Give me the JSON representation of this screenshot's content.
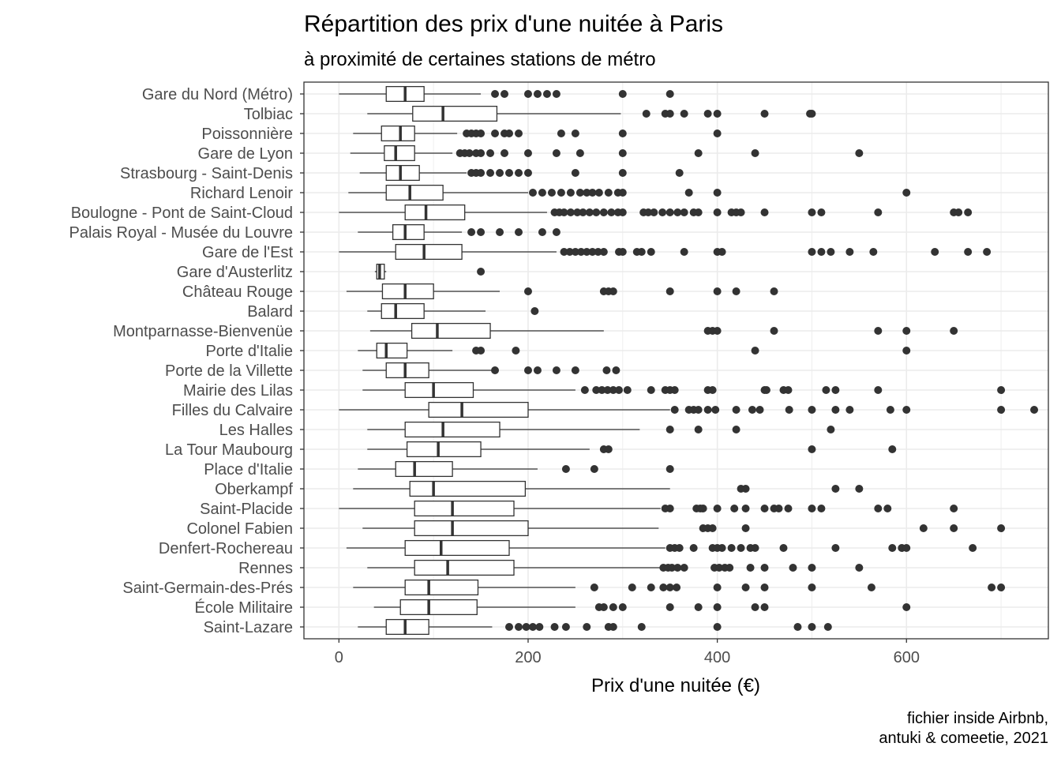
{
  "chart_data": {
    "type": "boxplot",
    "title": "Répartition des prix d'une nuitée à Paris",
    "subtitle": "à proximité de certaines stations de métro",
    "xlabel": "Prix d'une nuitée (€)",
    "ylabel": "",
    "caption_lines": [
      "fichier inside Airbnb,",
      "antuki & comeetie, 2021"
    ],
    "xlim": [
      -37,
      750
    ],
    "xticks": [
      0,
      200,
      400,
      600
    ],
    "xtick_labels": [
      "0",
      "200",
      "400",
      "600"
    ],
    "grid": true,
    "colors": {
      "box_fill": "#ffffff",
      "box_stroke": "#333333",
      "outlier": "#333333",
      "grid": "#ebebeb",
      "panel_border": "#333333"
    },
    "categories": [
      "Gare du Nord (Métro)",
      "Tolbiac",
      "Poissonnière",
      "Gare de Lyon",
      "Strasbourg - Saint-Denis",
      "Richard Lenoir",
      "Boulogne - Pont de Saint-Cloud",
      "Palais Royal - Musée du Louvre",
      "Gare de l'Est",
      "Gare d'Austerlitz",
      "Château Rouge",
      "Balard",
      "Montparnasse-Bienvenüe",
      "Porte d'Italie",
      "Porte de la Villette",
      "Mairie des Lilas",
      "Filles du Calvaire",
      "Les Halles",
      "La Tour Maubourg",
      "Place d'Italie",
      "Oberkampf",
      "Saint-Placide",
      "Colonel Fabien",
      "Denfert-Rochereau",
      "Rennes",
      "Saint-Germain-des-Prés",
      "École Militaire",
      "Saint-Lazare"
    ],
    "boxes": [
      {
        "min": 0,
        "q1": 50,
        "median": 70,
        "q3": 90,
        "max": 150,
        "outliers": [
          165,
          175,
          200,
          210,
          220,
          230,
          300,
          350
        ]
      },
      {
        "min": 30,
        "q1": 78,
        "median": 110,
        "q3": 167,
        "max": 298,
        "outliers": [
          325,
          345,
          350,
          365,
          390,
          400,
          450,
          498,
          500
        ]
      },
      {
        "min": 15,
        "q1": 45,
        "median": 65,
        "q3": 80,
        "max": 125,
        "outliers": [
          135,
          140,
          145,
          150,
          165,
          175,
          180,
          190,
          235,
          250,
          300,
          400
        ]
      },
      {
        "min": 12,
        "q1": 48,
        "median": 60,
        "q3": 80,
        "max": 120,
        "outliers": [
          128,
          133,
          138,
          145,
          150,
          160,
          175,
          200,
          230,
          255,
          300,
          380,
          440,
          550
        ]
      },
      {
        "min": 22,
        "q1": 50,
        "median": 65,
        "q3": 85,
        "max": 135,
        "outliers": [
          140,
          145,
          150,
          160,
          170,
          180,
          190,
          200,
          250,
          300,
          360
        ]
      },
      {
        "min": 10,
        "q1": 50,
        "median": 75,
        "q3": 110,
        "max": 200,
        "outliers": [
          205,
          215,
          225,
          235,
          245,
          255,
          262,
          268,
          275,
          285,
          295,
          300,
          370,
          400,
          600
        ]
      },
      {
        "min": 0,
        "q1": 70,
        "median": 92,
        "q3": 133,
        "max": 220,
        "outliers": [
          228,
          233,
          238,
          245,
          252,
          258,
          265,
          272,
          280,
          288,
          295,
          300,
          322,
          327,
          333,
          342,
          350,
          358,
          365,
          375,
          380,
          400,
          415,
          420,
          425,
          450,
          500,
          510,
          570,
          650,
          655,
          665
        ]
      },
      {
        "min": 20,
        "q1": 57,
        "median": 70,
        "q3": 90,
        "max": 130,
        "outliers": [
          140,
          150,
          170,
          190,
          215,
          230
        ]
      },
      {
        "min": 0,
        "q1": 60,
        "median": 90,
        "q3": 130,
        "max": 230,
        "outliers": [
          238,
          244,
          250,
          256,
          262,
          268,
          274,
          280,
          296,
          300,
          315,
          320,
          330,
          365,
          400,
          405,
          500,
          510,
          520,
          540,
          565,
          630,
          665,
          685
        ]
      },
      {
        "min": 38,
        "q1": 40,
        "median": 43,
        "q3": 48,
        "max": 50,
        "outliers": [
          150
        ]
      },
      {
        "min": 8,
        "q1": 46,
        "median": 70,
        "q3": 100,
        "max": 170,
        "outliers": [
          200,
          280,
          285,
          290,
          350,
          400,
          420,
          460
        ]
      },
      {
        "min": 30,
        "q1": 45,
        "median": 60,
        "q3": 90,
        "max": 155,
        "outliers": [
          207
        ]
      },
      {
        "min": 33,
        "q1": 77,
        "median": 104,
        "q3": 160,
        "max": 280,
        "outliers": [
          390,
          395,
          400,
          460,
          570,
          600,
          650
        ]
      },
      {
        "min": 20,
        "q1": 40,
        "median": 50,
        "q3": 72,
        "max": 120,
        "outliers": [
          145,
          150,
          187,
          440,
          600
        ]
      },
      {
        "min": 25,
        "q1": 50,
        "median": 70,
        "q3": 95,
        "max": 162,
        "outliers": [
          165,
          200,
          210,
          230,
          250,
          283,
          293
        ]
      },
      {
        "min": 25,
        "q1": 70,
        "median": 100,
        "q3": 142,
        "max": 250,
        "outliers": [
          260,
          272,
          278,
          284,
          290,
          296,
          305,
          330,
          345,
          350,
          355,
          390,
          395,
          450,
          452,
          470,
          475,
          515,
          525,
          570,
          700
        ]
      },
      {
        "min": 0,
        "q1": 95,
        "median": 130,
        "q3": 200,
        "max": 350,
        "outliers": [
          355,
          370,
          375,
          380,
          390,
          398,
          420,
          437,
          445,
          476,
          500,
          525,
          540,
          583,
          600,
          700,
          735
        ]
      },
      {
        "min": 30,
        "q1": 70,
        "median": 110,
        "q3": 170,
        "max": 318,
        "outliers": [
          350,
          380,
          420,
          520
        ]
      },
      {
        "min": 30,
        "q1": 72,
        "median": 105,
        "q3": 150,
        "max": 265,
        "outliers": [
          280,
          285,
          500,
          585
        ]
      },
      {
        "min": 20,
        "q1": 60,
        "median": 80,
        "q3": 120,
        "max": 210,
        "outliers": [
          240,
          270,
          350
        ]
      },
      {
        "min": 15,
        "q1": 75,
        "median": 100,
        "q3": 197,
        "max": 350,
        "outliers": [
          425,
          430,
          525,
          550
        ]
      },
      {
        "min": 0,
        "q1": 80,
        "median": 120,
        "q3": 185,
        "max": 340,
        "outliers": [
          345,
          350,
          378,
          382,
          385,
          400,
          418,
          430,
          450,
          460,
          465,
          475,
          500,
          510,
          570,
          580,
          650
        ]
      },
      {
        "min": 25,
        "q1": 80,
        "median": 120,
        "q3": 200,
        "max": 338,
        "outliers": [
          385,
          390,
          395,
          430,
          618,
          650,
          700
        ]
      },
      {
        "min": 8,
        "q1": 70,
        "median": 108,
        "q3": 180,
        "max": 345,
        "outliers": [
          350,
          355,
          360,
          375,
          395,
          400,
          405,
          415,
          425,
          435,
          440,
          470,
          525,
          585,
          595,
          600,
          670
        ]
      },
      {
        "min": 30,
        "q1": 80,
        "median": 115,
        "q3": 185,
        "max": 340,
        "outliers": [
          343,
          348,
          352,
          358,
          365,
          397,
          402,
          408,
          413,
          435,
          450,
          480,
          500,
          550
        ]
      },
      {
        "min": 15,
        "q1": 70,
        "median": 95,
        "q3": 147,
        "max": 250,
        "outliers": [
          270,
          310,
          330,
          343,
          350,
          357,
          400,
          430,
          450,
          500,
          563,
          690,
          700
        ]
      },
      {
        "min": 37,
        "q1": 65,
        "median": 95,
        "q3": 146,
        "max": 250,
        "outliers": [
          275,
          280,
          290,
          300,
          350,
          380,
          400,
          440,
          450,
          600
        ]
      },
      {
        "min": 20,
        "q1": 50,
        "median": 70,
        "q3": 95,
        "max": 162,
        "outliers": [
          180,
          190,
          198,
          205,
          212,
          228,
          240,
          262,
          285,
          290,
          320,
          400,
          485,
          500,
          517
        ]
      }
    ]
  }
}
